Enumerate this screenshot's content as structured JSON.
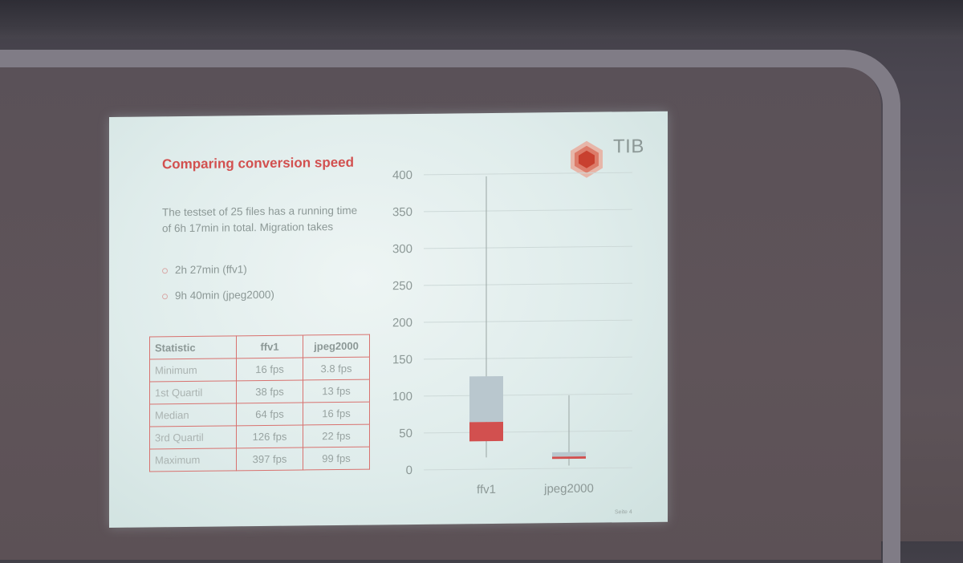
{
  "slide": {
    "title": "Comparing conversion speed",
    "body": "The testset of 25 files has a running time of  6h 17min in total. Migration takes",
    "bullets": [
      "2h 27min (ffv1)",
      "9h 40min (jpeg2000)"
    ],
    "logo_text": "TIB",
    "page_number": "Seite 4"
  },
  "table": {
    "headers": [
      "Statistic",
      "ffv1",
      "jpeg2000"
    ],
    "rows": [
      [
        "Minimum",
        "16 fps",
        "3.8 fps"
      ],
      [
        "1st Quartil",
        "38 fps",
        "13 fps"
      ],
      [
        "Median",
        "64 fps",
        "16 fps"
      ],
      [
        "3rd Quartil",
        "126 fps",
        "22 fps"
      ],
      [
        "Maximum",
        "397 fps",
        "99 fps"
      ]
    ]
  },
  "colors": {
    "accent_red": "#d2504f",
    "box_blue": "#b9c7ce",
    "slide_bg": "#e3efee"
  },
  "chart_data": {
    "type": "box",
    "categories": [
      "ffv1",
      "jpeg2000"
    ],
    "series": [
      {
        "min": 16,
        "q1": 38,
        "median": 64,
        "q3": 126,
        "max": 397
      },
      {
        "min": 3.8,
        "q1": 13,
        "median": 16,
        "q3": 22,
        "max": 99
      }
    ],
    "yticks": [
      "0",
      "50",
      "100",
      "150",
      "200",
      "250",
      "300",
      "350",
      "400"
    ],
    "ylim": [
      0,
      400
    ],
    "grid": true
  }
}
